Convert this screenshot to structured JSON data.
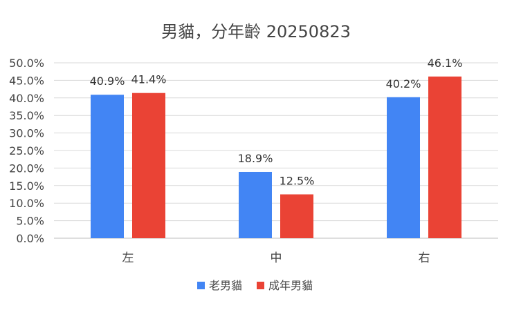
{
  "chart_data": {
    "type": "bar",
    "title": "男貓，分年齡 20250823",
    "categories": [
      "左",
      "中",
      "右"
    ],
    "series": [
      {
        "name": "老男貓",
        "values": [
          40.9,
          18.9,
          40.2
        ],
        "labels": [
          "40.9%",
          "18.9%",
          "40.2%"
        ],
        "color": "#4285F4"
      },
      {
        "name": "成年男貓",
        "values": [
          41.4,
          12.5,
          46.1
        ],
        "labels": [
          "41.4%",
          "12.5%",
          "46.1%"
        ],
        "color": "#EA4335"
      }
    ],
    "ylim": [
      0,
      50
    ],
    "yticks": [
      "0.0%",
      "5.0%",
      "10.0%",
      "15.0%",
      "20.0%",
      "25.0%",
      "30.0%",
      "35.0%",
      "40.0%",
      "45.0%",
      "50.0%"
    ],
    "grid": true,
    "legend_position": "bottom",
    "xlabel": "",
    "ylabel": ""
  }
}
